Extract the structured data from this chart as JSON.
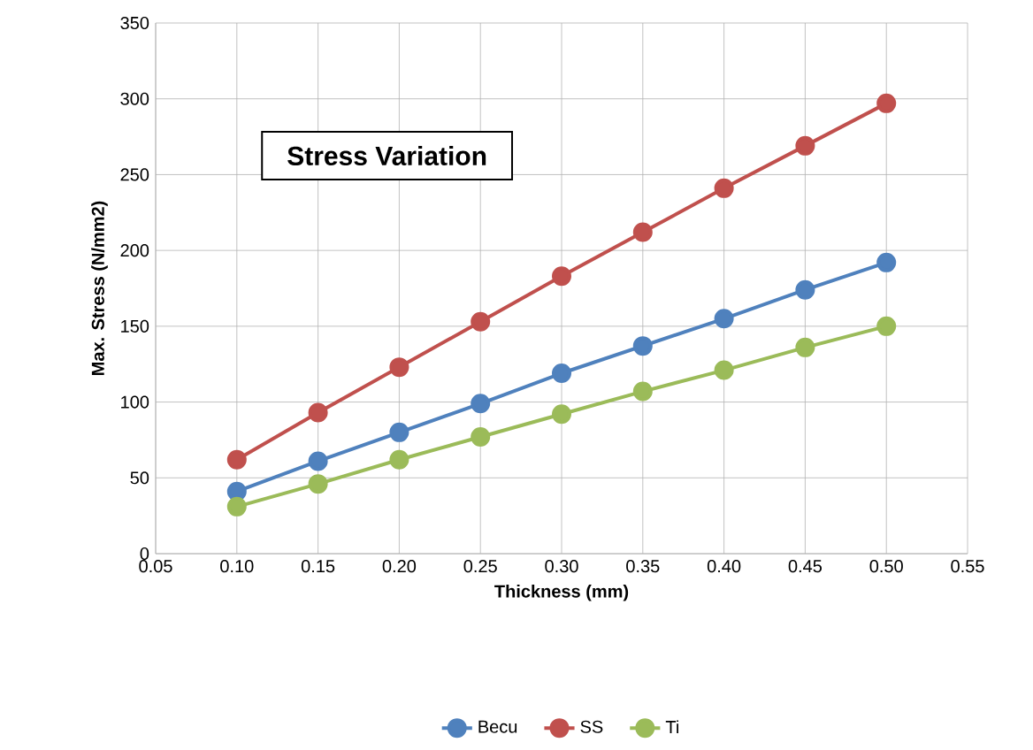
{
  "chart_data": {
    "type": "line",
    "title": "Stress Variation",
    "xlabel": "Thickness (mm)",
    "ylabel": "Max. Stress (N/mm2)",
    "x": [
      0.1,
      0.15,
      0.2,
      0.25,
      0.3,
      0.35,
      0.4,
      0.45,
      0.5
    ],
    "series": [
      {
        "name": "Becu",
        "color": "#4f81bd",
        "values": [
          41,
          61,
          80,
          99,
          119,
          137,
          155,
          174,
          192
        ]
      },
      {
        "name": "SS",
        "color": "#c0504d",
        "values": [
          62,
          93,
          123,
          153,
          183,
          212,
          241,
          269,
          297
        ]
      },
      {
        "name": "Ti",
        "color": "#9bbb59",
        "values": [
          31,
          46,
          62,
          77,
          92,
          107,
          121,
          136,
          150
        ]
      }
    ],
    "xlim": [
      0.05,
      0.55
    ],
    "xticks": [
      {
        "value": 0.05,
        "label": "0.05"
      },
      {
        "value": 0.1,
        "label": "0.10"
      },
      {
        "value": 0.15,
        "label": "0.15"
      },
      {
        "value": 0.2,
        "label": "0.20"
      },
      {
        "value": 0.25,
        "label": "0.25"
      },
      {
        "value": 0.3,
        "label": "0.30"
      },
      {
        "value": 0.35,
        "label": "0.35"
      },
      {
        "value": 0.4,
        "label": "0.40"
      },
      {
        "value": 0.45,
        "label": "0.45"
      },
      {
        "value": 0.5,
        "label": "0.50"
      },
      {
        "value": 0.55,
        "label": "0.55"
      }
    ],
    "ylim": [
      0,
      350
    ],
    "yticks": [
      0,
      50,
      100,
      150,
      200,
      250,
      300,
      350
    ],
    "grid": true,
    "legend": "bottom",
    "marker": "circle",
    "line_style": "solid"
  }
}
